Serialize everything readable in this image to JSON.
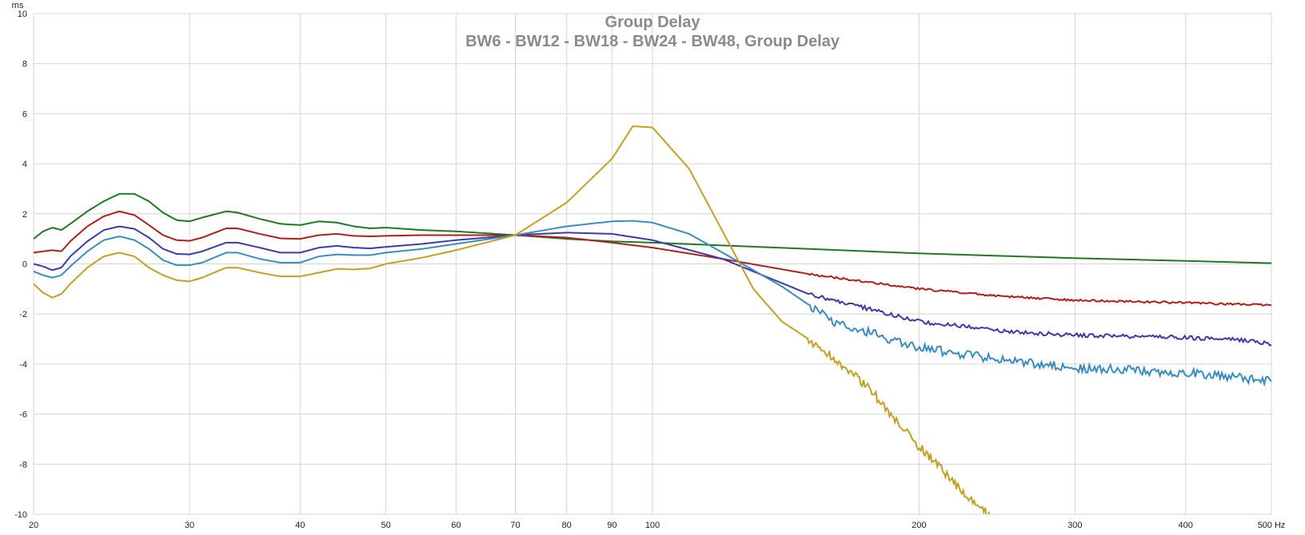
{
  "chart_data": {
    "type": "line",
    "title": "Group Delay",
    "subtitle": "BW6 - BW12 - BW18 - BW24 - BW48, Group Delay",
    "ylabel": "ms",
    "xlabel": "Hz",
    "x_scale": "log",
    "xlim": [
      20,
      500
    ],
    "ylim": [
      -10,
      10
    ],
    "grid": true,
    "x_ticks": [
      20,
      30,
      40,
      50,
      60,
      70,
      80,
      90,
      100,
      200,
      300,
      400,
      500
    ],
    "x_tick_labels": [
      "20",
      "30",
      "40",
      "50",
      "60",
      "70",
      "80",
      "90",
      "100",
      "200",
      "300",
      "400",
      "500 Hz"
    ],
    "y_ticks": [
      -10,
      -8,
      -6,
      -4,
      -2,
      0,
      2,
      4,
      6,
      8,
      10
    ],
    "y_tick_labels": [
      "-10",
      "-8",
      "-6",
      "-4",
      "-2",
      "0",
      "2",
      "4",
      "6",
      "8",
      "10"
    ],
    "series": [
      {
        "color": "#1f7a1f",
        "points": [
          [
            20,
            1.0
          ],
          [
            20.5,
            1.3
          ],
          [
            21,
            1.45
          ],
          [
            21.5,
            1.35
          ],
          [
            22,
            1.6
          ],
          [
            23,
            2.1
          ],
          [
            24,
            2.5
          ],
          [
            25,
            2.8
          ],
          [
            26,
            2.8
          ],
          [
            27,
            2.5
          ],
          [
            28,
            2.05
          ],
          [
            29,
            1.75
          ],
          [
            30,
            1.7
          ],
          [
            31,
            1.85
          ],
          [
            33,
            2.1
          ],
          [
            34,
            2.05
          ],
          [
            36,
            1.8
          ],
          [
            38,
            1.6
          ],
          [
            40,
            1.55
          ],
          [
            42,
            1.7
          ],
          [
            44,
            1.65
          ],
          [
            46,
            1.5
          ],
          [
            48,
            1.42
          ],
          [
            50,
            1.45
          ],
          [
            55,
            1.35
          ],
          [
            60,
            1.3
          ],
          [
            70,
            1.15
          ],
          [
            80,
            1.0
          ],
          [
            90,
            0.9
          ],
          [
            100,
            0.85
          ],
          [
            150,
            0.6
          ],
          [
            200,
            0.42
          ],
          [
            300,
            0.23
          ],
          [
            400,
            0.12
          ],
          [
            500,
            0.03
          ]
        ]
      },
      {
        "color": "#b01e1e",
        "points": [
          [
            20,
            0.45
          ],
          [
            21,
            0.55
          ],
          [
            21.5,
            0.5
          ],
          [
            22,
            0.9
          ],
          [
            23,
            1.5
          ],
          [
            24,
            1.9
          ],
          [
            25,
            2.1
          ],
          [
            26,
            1.95
          ],
          [
            27,
            1.55
          ],
          [
            28,
            1.15
          ],
          [
            29,
            0.95
          ],
          [
            30,
            0.92
          ],
          [
            31,
            1.05
          ],
          [
            33,
            1.42
          ],
          [
            34,
            1.42
          ],
          [
            36,
            1.2
          ],
          [
            38,
            1.02
          ],
          [
            40,
            1.0
          ],
          [
            42,
            1.15
          ],
          [
            44,
            1.2
          ],
          [
            46,
            1.12
          ],
          [
            48,
            1.1
          ],
          [
            50,
            1.12
          ],
          [
            55,
            1.15
          ],
          [
            60,
            1.15
          ],
          [
            70,
            1.15
          ],
          [
            80,
            1.05
          ],
          [
            90,
            0.85
          ],
          [
            100,
            0.65
          ],
          [
            120,
            0.2
          ],
          [
            150,
            -0.4
          ],
          [
            200,
            -1.0
          ],
          [
            250,
            -1.3
          ],
          [
            300,
            -1.45
          ],
          [
            400,
            -1.55
          ],
          [
            500,
            -1.65
          ]
        ]
      },
      {
        "color": "#3b3ba8",
        "points": [
          [
            20,
            0.0
          ],
          [
            20.5,
            -0.1
          ],
          [
            21,
            -0.25
          ],
          [
            21.5,
            -0.15
          ],
          [
            22,
            0.3
          ],
          [
            23,
            0.9
          ],
          [
            24,
            1.35
          ],
          [
            25,
            1.5
          ],
          [
            26,
            1.4
          ],
          [
            27,
            1.05
          ],
          [
            28,
            0.6
          ],
          [
            29,
            0.4
          ],
          [
            30,
            0.38
          ],
          [
            31,
            0.5
          ],
          [
            33,
            0.85
          ],
          [
            34,
            0.85
          ],
          [
            36,
            0.65
          ],
          [
            38,
            0.45
          ],
          [
            40,
            0.45
          ],
          [
            42,
            0.65
          ],
          [
            44,
            0.72
          ],
          [
            46,
            0.65
          ],
          [
            48,
            0.62
          ],
          [
            50,
            0.68
          ],
          [
            55,
            0.8
          ],
          [
            60,
            0.95
          ],
          [
            70,
            1.15
          ],
          [
            80,
            1.25
          ],
          [
            90,
            1.2
          ],
          [
            100,
            0.95
          ],
          [
            120,
            0.2
          ],
          [
            150,
            -1.2
          ],
          [
            200,
            -2.3
          ],
          [
            250,
            -2.7
          ],
          [
            300,
            -2.85
          ],
          [
            350,
            -2.9
          ],
          [
            400,
            -2.95
          ],
          [
            450,
            -3.0
          ],
          [
            500,
            -3.2
          ]
        ]
      },
      {
        "color": "#3a8cc0",
        "points": [
          [
            20,
            -0.3
          ],
          [
            20.5,
            -0.45
          ],
          [
            21,
            -0.55
          ],
          [
            21.5,
            -0.45
          ],
          [
            22,
            -0.1
          ],
          [
            23,
            0.5
          ],
          [
            24,
            0.95
          ],
          [
            25,
            1.1
          ],
          [
            26,
            0.95
          ],
          [
            27,
            0.6
          ],
          [
            28,
            0.15
          ],
          [
            29,
            -0.05
          ],
          [
            30,
            -0.05
          ],
          [
            31,
            0.05
          ],
          [
            33,
            0.45
          ],
          [
            34,
            0.45
          ],
          [
            36,
            0.2
          ],
          [
            38,
            0.05
          ],
          [
            40,
            0.05
          ],
          [
            42,
            0.3
          ],
          [
            44,
            0.38
          ],
          [
            46,
            0.35
          ],
          [
            48,
            0.35
          ],
          [
            50,
            0.45
          ],
          [
            55,
            0.6
          ],
          [
            60,
            0.8
          ],
          [
            70,
            1.15
          ],
          [
            80,
            1.5
          ],
          [
            90,
            1.7
          ],
          [
            95,
            1.72
          ],
          [
            100,
            1.65
          ],
          [
            110,
            1.2
          ],
          [
            120,
            0.45
          ],
          [
            140,
            -0.9
          ],
          [
            160,
            -2.3
          ],
          [
            200,
            -3.35
          ],
          [
            250,
            -3.85
          ],
          [
            300,
            -4.15
          ],
          [
            350,
            -4.25
          ],
          [
            400,
            -4.35
          ],
          [
            450,
            -4.5
          ],
          [
            500,
            -4.7
          ]
        ]
      },
      {
        "color": "#c3a024",
        "points": [
          [
            20,
            -0.8
          ],
          [
            20.5,
            -1.15
          ],
          [
            21,
            -1.35
          ],
          [
            21.5,
            -1.2
          ],
          [
            22,
            -0.8
          ],
          [
            23,
            -0.15
          ],
          [
            24,
            0.3
          ],
          [
            25,
            0.45
          ],
          [
            26,
            0.3
          ],
          [
            27,
            -0.15
          ],
          [
            28,
            -0.45
          ],
          [
            29,
            -0.65
          ],
          [
            30,
            -0.7
          ],
          [
            31,
            -0.55
          ],
          [
            33,
            -0.15
          ],
          [
            34,
            -0.15
          ],
          [
            36,
            -0.35
          ],
          [
            38,
            -0.5
          ],
          [
            40,
            -0.5
          ],
          [
            42,
            -0.35
          ],
          [
            44,
            -0.2
          ],
          [
            46,
            -0.22
          ],
          [
            48,
            -0.18
          ],
          [
            50,
            0.0
          ],
          [
            55,
            0.25
          ],
          [
            60,
            0.55
          ],
          [
            70,
            1.15
          ],
          [
            80,
            2.45
          ],
          [
            90,
            4.2
          ],
          [
            95,
            5.5
          ],
          [
            100,
            5.45
          ],
          [
            110,
            3.8
          ],
          [
            120,
            1.3
          ],
          [
            130,
            -1.0
          ],
          [
            140,
            -2.3
          ],
          [
            150,
            -3.0
          ],
          [
            170,
            -4.5
          ],
          [
            180,
            -5.4
          ],
          [
            190,
            -6.4
          ],
          [
            200,
            -7.3
          ],
          [
            210,
            -8.0
          ],
          [
            220,
            -8.8
          ],
          [
            230,
            -9.5
          ],
          [
            240,
            -10.0
          ]
        ]
      }
    ]
  }
}
